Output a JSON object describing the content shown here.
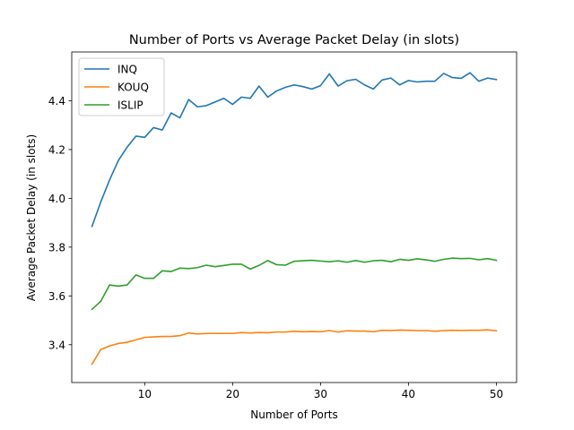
{
  "chart_data": {
    "type": "line",
    "title": "Number of Ports vs Average Packet Delay (in slots)",
    "xlabel": "Number of Ports",
    "ylabel": "Average Packet Delay (in slots)",
    "xlim": [
      1.7,
      52.3
    ],
    "ylim": [
      3.245,
      4.6
    ],
    "xticks": [
      10,
      20,
      30,
      40,
      50
    ],
    "yticks": [
      3.4,
      3.6,
      3.8,
      4.0,
      4.2,
      4.4
    ],
    "ytick_labels": [
      "3.4",
      "3.6",
      "3.8",
      "4.0",
      "4.2",
      "4.4"
    ],
    "legend_position": "upper-left",
    "grid": false,
    "x": [
      4,
      5,
      6,
      7,
      8,
      9,
      10,
      11,
      12,
      13,
      14,
      15,
      16,
      17,
      18,
      19,
      20,
      21,
      22,
      23,
      24,
      25,
      26,
      27,
      28,
      29,
      30,
      31,
      32,
      33,
      34,
      35,
      36,
      37,
      38,
      39,
      40,
      41,
      42,
      43,
      44,
      45,
      46,
      47,
      48,
      49,
      50
    ],
    "series": [
      {
        "name": "INQ",
        "color": "#1f77b4",
        "values": [
          3.885,
          3.985,
          4.075,
          4.155,
          4.21,
          4.255,
          4.25,
          4.29,
          4.28,
          4.35,
          4.33,
          4.405,
          4.375,
          4.38,
          4.395,
          4.41,
          4.385,
          4.415,
          4.41,
          4.46,
          4.415,
          4.44,
          4.455,
          4.465,
          4.458,
          4.448,
          4.462,
          4.51,
          4.46,
          4.482,
          4.488,
          4.465,
          4.448,
          4.485,
          4.493,
          4.465,
          4.483,
          4.477,
          4.48,
          4.48,
          4.512,
          4.495,
          4.492,
          4.515,
          4.48,
          4.493,
          4.487
        ]
      },
      {
        "name": "KOUQ",
        "color": "#ff7f0e",
        "values": [
          3.32,
          3.38,
          3.395,
          3.405,
          3.41,
          3.42,
          3.43,
          3.432,
          3.434,
          3.434,
          3.437,
          3.448,
          3.444,
          3.446,
          3.446,
          3.446,
          3.446,
          3.45,
          3.448,
          3.45,
          3.449,
          3.452,
          3.452,
          3.455,
          3.453,
          3.454,
          3.453,
          3.458,
          3.452,
          3.457,
          3.456,
          3.456,
          3.453,
          3.459,
          3.458,
          3.46,
          3.459,
          3.458,
          3.458,
          3.455,
          3.458,
          3.459,
          3.458,
          3.459,
          3.459,
          3.461,
          3.457
        ]
      },
      {
        "name": "ISLIP",
        "color": "#2ca02c",
        "values": [
          3.545,
          3.578,
          3.645,
          3.64,
          3.645,
          3.686,
          3.672,
          3.672,
          3.703,
          3.7,
          3.714,
          3.712,
          3.716,
          3.726,
          3.72,
          3.725,
          3.73,
          3.73,
          3.71,
          3.725,
          3.745,
          3.728,
          3.726,
          3.742,
          3.744,
          3.746,
          3.743,
          3.74,
          3.744,
          3.738,
          3.745,
          3.738,
          3.744,
          3.746,
          3.74,
          3.75,
          3.746,
          3.752,
          3.748,
          3.742,
          3.75,
          3.755,
          3.753,
          3.754,
          3.748,
          3.753,
          3.746
        ]
      }
    ]
  }
}
